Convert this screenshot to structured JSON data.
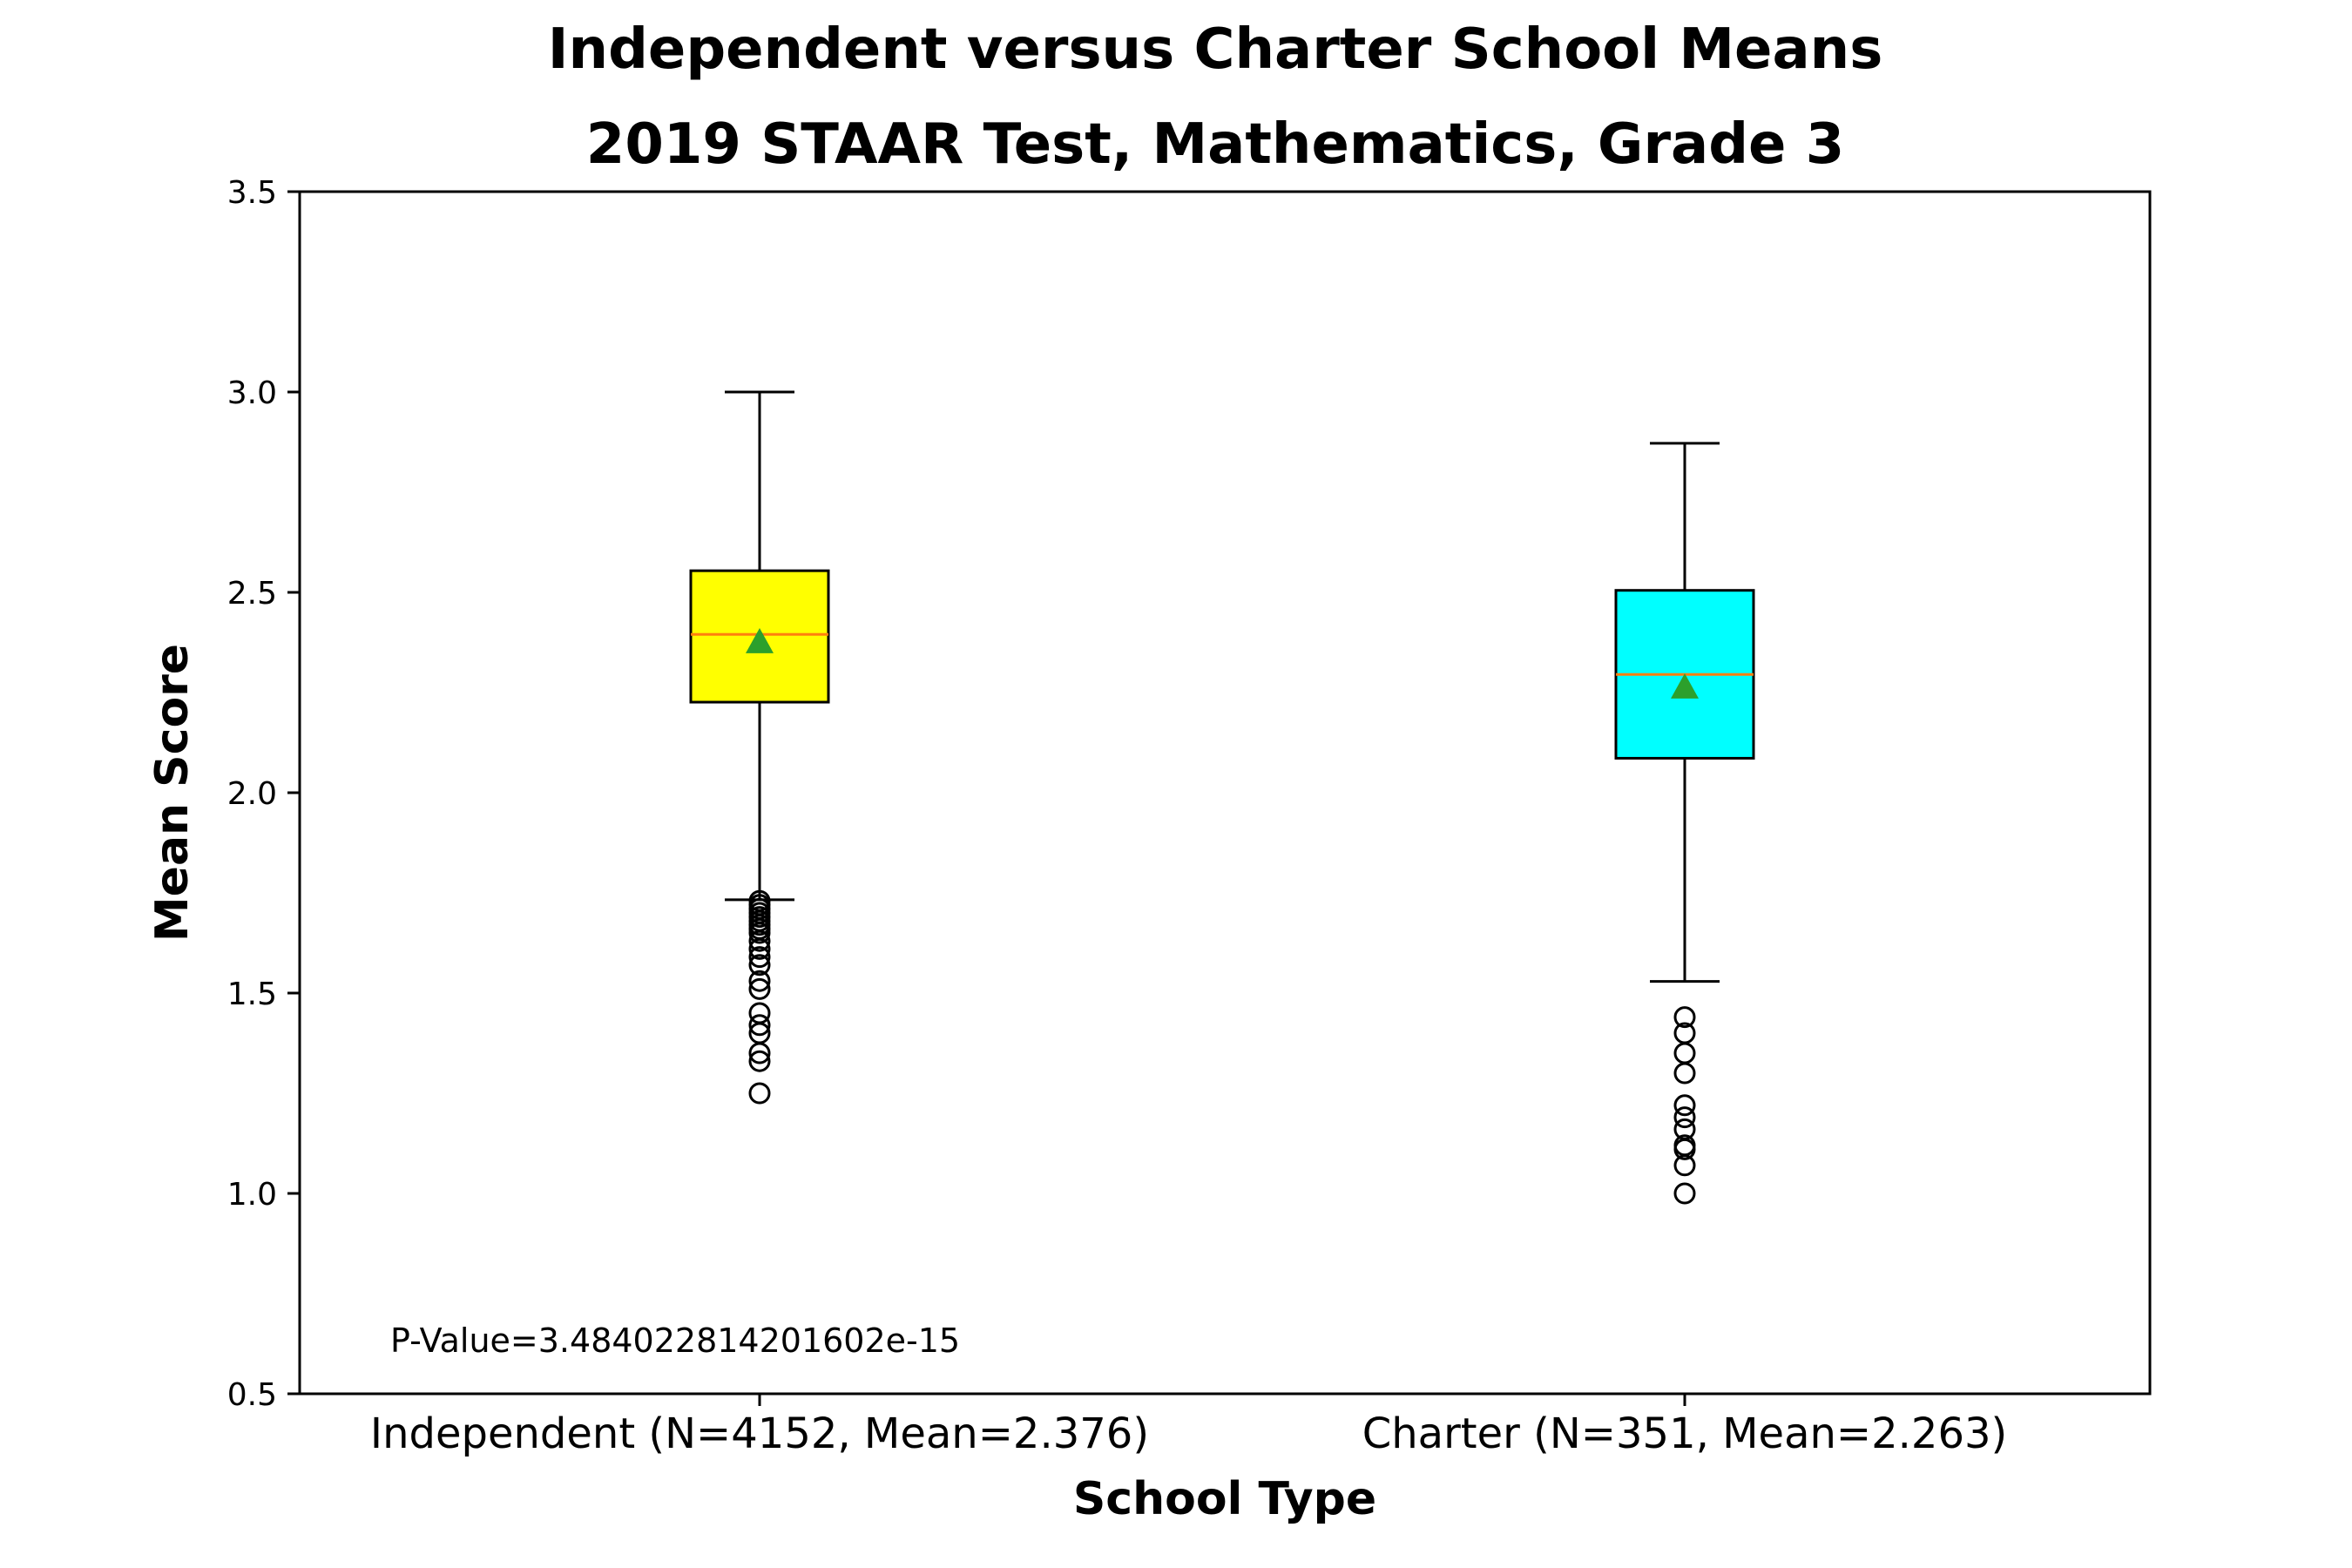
{
  "chart_data": {
    "type": "box",
    "title_line1": "Independent versus Charter School Means",
    "title_line2": "2019 STAAR Test, Mathematics, Grade 3",
    "xlabel": "School Type",
    "ylabel": "Mean Score",
    "ylim": [
      0.5,
      3.5
    ],
    "yticks": [
      "0.5",
      "1.0",
      "1.5",
      "2.0",
      "2.5",
      "3.0",
      "3.5"
    ],
    "grid": false,
    "annotation": "P-Value=3.484022814201602e-15",
    "categories": [
      "Independent (N=4152, Mean=2.376)",
      "Charter (N=351, Mean=2.263)"
    ],
    "boxes": [
      {
        "whisker_low": 1.733,
        "q1": 2.226,
        "median": 2.395,
        "q3": 2.554,
        "whisker_high": 3.0,
        "mean": 2.376,
        "fill": "#ffff00",
        "outliers": [
          1.73,
          1.72,
          1.71,
          1.7,
          1.69,
          1.68,
          1.67,
          1.66,
          1.65,
          1.63,
          1.61,
          1.59,
          1.57,
          1.53,
          1.51,
          1.45,
          1.42,
          1.4,
          1.35,
          1.33,
          1.25
        ]
      },
      {
        "whisker_low": 1.529,
        "q1": 2.086,
        "median": 2.295,
        "q3": 2.505,
        "whisker_high": 2.872,
        "mean": 2.263,
        "fill": "#00ffff",
        "outliers": [
          1.44,
          1.4,
          1.35,
          1.3,
          1.22,
          1.19,
          1.16,
          1.12,
          1.11,
          1.07,
          1.0
        ]
      }
    ],
    "median_color": "#ff7f0e",
    "mean_color": "#2ca02c"
  }
}
